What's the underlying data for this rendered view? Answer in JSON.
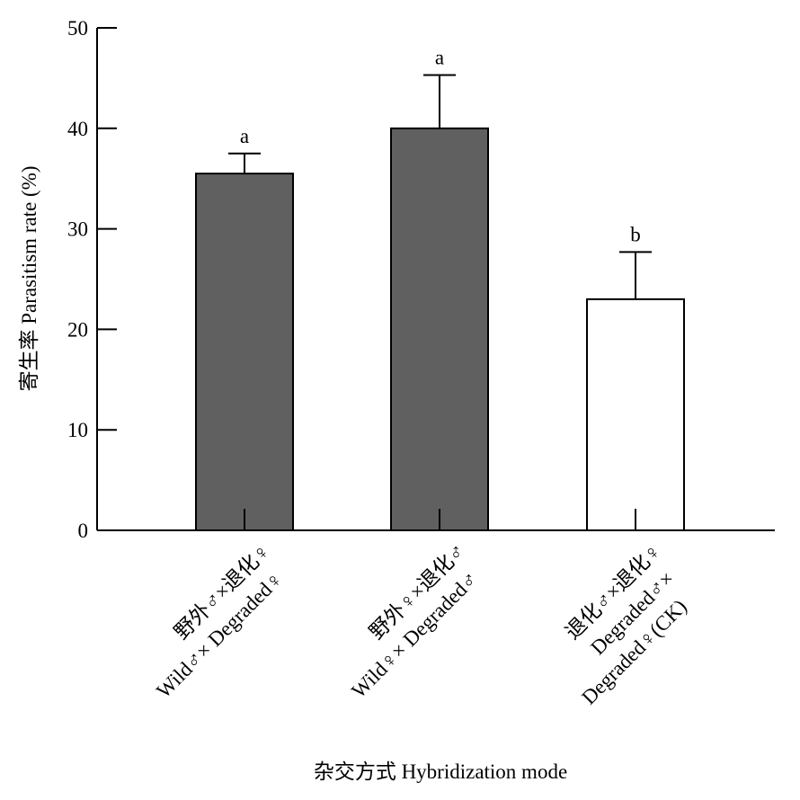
{
  "chart_data": {
    "type": "bar",
    "ylabel": "寄生率 Parasitism rate (%)",
    "xlabel": "杂交方式 Hybridization mode",
    "categories": [
      [
        "野外♂×退化♀",
        "Wild♂× Degraded♀"
      ],
      [
        "野外♀×退化♂",
        "Wild♀× Degraded♂"
      ],
      [
        "退化♂×退化♀",
        "Degraded♂×",
        "Degraded♀(CK)"
      ]
    ],
    "values": [
      35.5,
      40,
      23
    ],
    "errors": [
      2,
      5.3,
      4.7
    ],
    "letters": [
      "a",
      "a",
      "b"
    ],
    "colors": [
      "#606060",
      "#606060",
      "#ffffff"
    ],
    "ylim": [
      0,
      50
    ],
    "yticks": [
      0,
      10,
      20,
      30,
      40,
      50
    ]
  }
}
